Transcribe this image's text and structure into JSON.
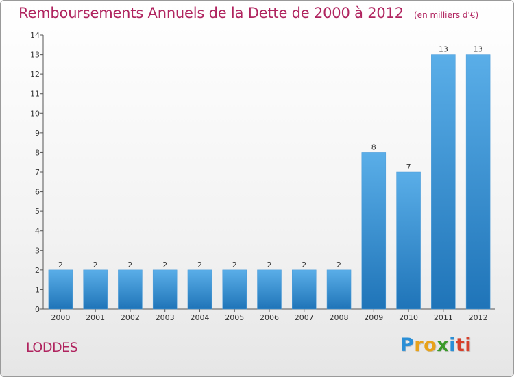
{
  "header": {
    "title": "Remboursements Annuels de la Dette de 2000 à 2012",
    "subtitle": "(en milliers d'€)"
  },
  "place": "LODDES",
  "logo": {
    "text": "Proxiti",
    "letters": [
      {
        "ch": "P",
        "color": "#2b8fd6"
      },
      {
        "ch": "r",
        "color": "#e8a21a"
      },
      {
        "ch": "o",
        "color": "#e8a21a"
      },
      {
        "ch": "x",
        "color": "#3a9a2a"
      },
      {
        "ch": "i",
        "color": "#2b8fd6"
      },
      {
        "ch": "t",
        "color": "#d6402b"
      },
      {
        "ch": "i",
        "color": "#d6402b"
      }
    ]
  },
  "colors": {
    "title": "#b0245f",
    "bar_top": "#5aaee8",
    "bar_bottom": "#1f74b8"
  },
  "chart_data": {
    "type": "bar",
    "categories": [
      "2000",
      "2001",
      "2002",
      "2003",
      "2004",
      "2005",
      "2006",
      "2007",
      "2008",
      "2009",
      "2010",
      "2011",
      "2012"
    ],
    "values": [
      2,
      2,
      2,
      2,
      2,
      2,
      2,
      2,
      2,
      8,
      7,
      13,
      13
    ],
    "value_labels": [
      "2",
      "2",
      "2",
      "2",
      "2",
      "2",
      "2",
      "2",
      "2",
      "8",
      "7",
      "13",
      "13"
    ],
    "ylim": [
      0,
      14
    ],
    "yticks": [
      0,
      1,
      2,
      3,
      4,
      5,
      6,
      7,
      8,
      9,
      10,
      11,
      12,
      13,
      14
    ],
    "grid": false,
    "xlabel": "",
    "ylabel": ""
  }
}
